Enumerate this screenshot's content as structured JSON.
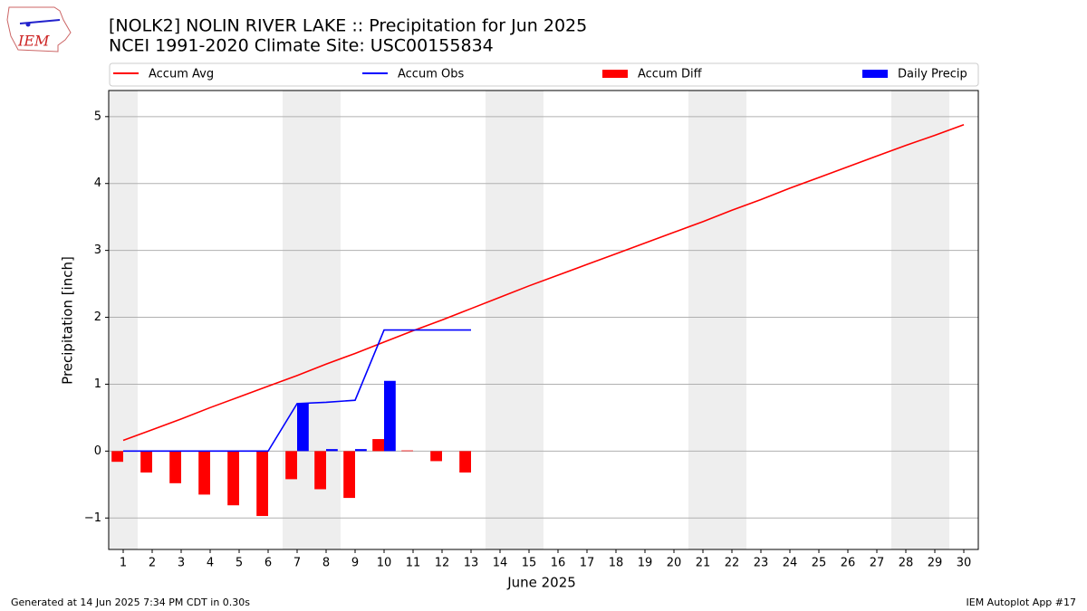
{
  "chart_data": {
    "type": "bar",
    "title": "[NOLK2] NOLIN RIVER LAKE :: Precipitation for Jun 2025",
    "subtitle": "NCEI 1991-2020 Climate Site: USC00155834",
    "xlabel": "June 2025",
    "ylabel": "Precipitation [inch]",
    "x": [
      1,
      2,
      3,
      4,
      5,
      6,
      7,
      8,
      9,
      10,
      11,
      12,
      13,
      14,
      15,
      16,
      17,
      18,
      19,
      20,
      21,
      22,
      23,
      24,
      25,
      26,
      27,
      28,
      29,
      30
    ],
    "xlim": [
      0.5,
      30.5
    ],
    "xticks": [
      1,
      2,
      3,
      4,
      5,
      6,
      7,
      8,
      9,
      10,
      11,
      12,
      13,
      14,
      15,
      16,
      17,
      18,
      19,
      20,
      21,
      22,
      23,
      24,
      25,
      26,
      27,
      28,
      29,
      30
    ],
    "ylim": [
      -1.47,
      5.39
    ],
    "yticks": [
      {
        "value": -1,
        "label": "−1"
      },
      0,
      1,
      2,
      3,
      4,
      5
    ],
    "grid": true,
    "legend": "upper center",
    "shaded_days": [
      1,
      7,
      8,
      14,
      15,
      21,
      22,
      28,
      29
    ],
    "series": [
      {
        "name": "Accum Avg",
        "kind": "line",
        "color": "#ff0000",
        "values": [
          0.16,
          0.32,
          0.48,
          0.65,
          0.81,
          0.97,
          1.13,
          1.3,
          1.46,
          1.63,
          1.8,
          1.96,
          2.13,
          2.3,
          2.47,
          2.63,
          2.79,
          2.95,
          3.11,
          3.27,
          3.43,
          3.6,
          3.76,
          3.93,
          4.09,
          4.25,
          4.41,
          4.57,
          4.72,
          4.88
        ]
      },
      {
        "name": "Accum Obs",
        "kind": "line",
        "color": "#0000ff",
        "values": [
          0,
          0,
          0,
          0,
          0,
          0,
          0.71,
          0.73,
          0.76,
          1.81,
          1.81,
          1.81,
          1.81,
          null,
          null,
          null,
          null,
          null,
          null,
          null,
          null,
          null,
          null,
          null,
          null,
          null,
          null,
          null,
          null,
          null
        ]
      },
      {
        "name": "Accum Diff",
        "kind": "bar",
        "color": "#ff0000",
        "values": [
          -0.16,
          -0.32,
          -0.48,
          -0.65,
          -0.81,
          -0.97,
          -0.42,
          -0.57,
          -0.7,
          0.18,
          0.01,
          -0.15,
          -0.32,
          null,
          null,
          null,
          null,
          null,
          null,
          null,
          null,
          null,
          null,
          null,
          null,
          null,
          null,
          null,
          null,
          null
        ]
      },
      {
        "name": "Daily Precip",
        "kind": "bar",
        "color": "#0000ff",
        "values": [
          0,
          0,
          0,
          0,
          0,
          0,
          0.71,
          0.03,
          0.03,
          1.05,
          0,
          0,
          0,
          null,
          null,
          null,
          null,
          null,
          null,
          null,
          null,
          null,
          null,
          null,
          null,
          null,
          null,
          null,
          null,
          null
        ]
      }
    ]
  },
  "logo": "IEM",
  "footer": {
    "left": "Generated at 14 Jun 2025 7:34 PM CDT in 0.30s",
    "right": "IEM Autoplot App #17"
  }
}
